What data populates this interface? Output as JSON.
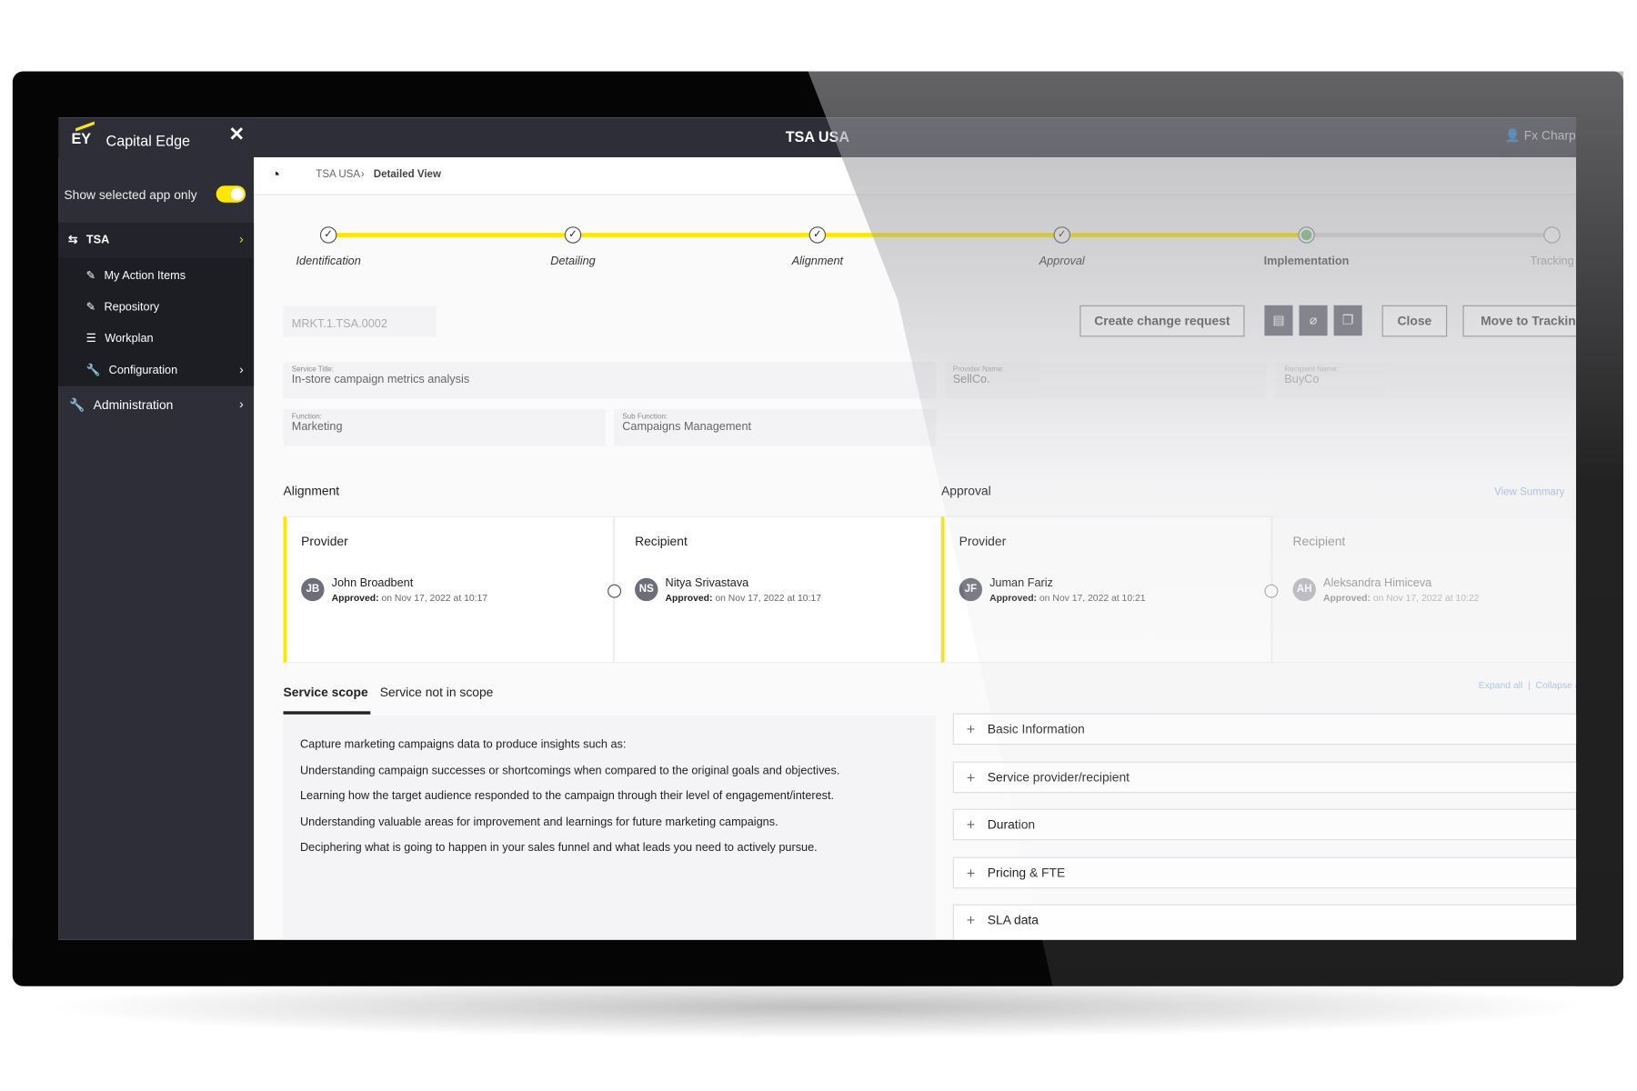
{
  "app": {
    "logo": "EY",
    "brand": "Capital Edge",
    "title": "TSA USA",
    "user": "Fx Charpentier"
  },
  "sidebar": {
    "toggle_label": "Show selected app only",
    "toggle_on": true,
    "section": "TSA",
    "items": [
      {
        "label": "My Action Items",
        "icon": "edit-icon"
      },
      {
        "label": "Repository",
        "icon": "edit-icon"
      },
      {
        "label": "Workplan",
        "icon": "list-icon"
      },
      {
        "label": "Configuration",
        "icon": "wrench-icon"
      }
    ],
    "admin": "Administration"
  },
  "breadcrumb": {
    "root": "TSA USA",
    "current": "Detailed View"
  },
  "stepper": {
    "steps": [
      "Identification",
      "Detailing",
      "Alignment",
      "Approval",
      "Implementation",
      "Tracking"
    ],
    "current_index": 4,
    "accent": "#ffe600",
    "current_color": "#7cc47f"
  },
  "record": {
    "id": "MRKT.1.TSA.0002",
    "buttons": {
      "create_change": "Create change request",
      "close": "Close",
      "move": "Move to Tracking"
    },
    "icon_buttons": [
      "pdf-icon",
      "attachment-icon",
      "copy-icon"
    ],
    "fields": {
      "service_title_label": "Service Title:",
      "service_title": "In-store campaign metrics analysis",
      "provider_label": "Provider Name:",
      "provider": "SellCo.",
      "recipient_label": "Recipient Name:",
      "recipient": "BuyCo",
      "function_label": "Function:",
      "function": "Marketing",
      "subfunction_label": "Sub Function:",
      "subfunction": "Campaigns Management"
    }
  },
  "alignment": {
    "title": "Alignment",
    "provider": {
      "role": "Provider",
      "initials": "JB",
      "name": "John Broadbent",
      "status": "Approved:",
      "date": "on Nov 17, 2022 at 10:17"
    },
    "recipient": {
      "role": "Recipient",
      "initials": "NS",
      "name": "Nitya Srivastava",
      "status": "Approved:",
      "date": "on Nov 17, 2022 at 10:17"
    }
  },
  "approval": {
    "title": "Approval",
    "view_summary": "View Summary",
    "provider": {
      "role": "Provider",
      "initials": "JF",
      "name": "Juman Fariz",
      "status": "Approved:",
      "date": "on Nov 17, 2022 at 10:21"
    },
    "recipient": {
      "role": "Recipient",
      "initials": "AH",
      "name": "Aleksandra Himiceva",
      "status": "Approved:",
      "date": "on Nov 17, 2022 at 10:22"
    }
  },
  "scope": {
    "tabs": [
      "Service scope",
      "Service not in scope"
    ],
    "active": 0,
    "lines": [
      "Capture marketing campaigns data to produce insights such as:",
      "Understanding campaign successes or shortcomings when compared to the original goals and objectives.",
      "Learning how the target audience responded to the campaign through their level of engagement/interest.",
      "Understanding valuable areas for improvement and learnings for future marketing campaigns.",
      "Deciphering what is going to happen in your sales funnel and what leads you need to actively pursue."
    ]
  },
  "accordion": {
    "expand_all": "Expand all",
    "collapse_all": "Collapse all",
    "items": [
      "Basic Information",
      "Service provider/recipient",
      "Duration",
      "Pricing & FTE",
      "SLA data"
    ]
  }
}
